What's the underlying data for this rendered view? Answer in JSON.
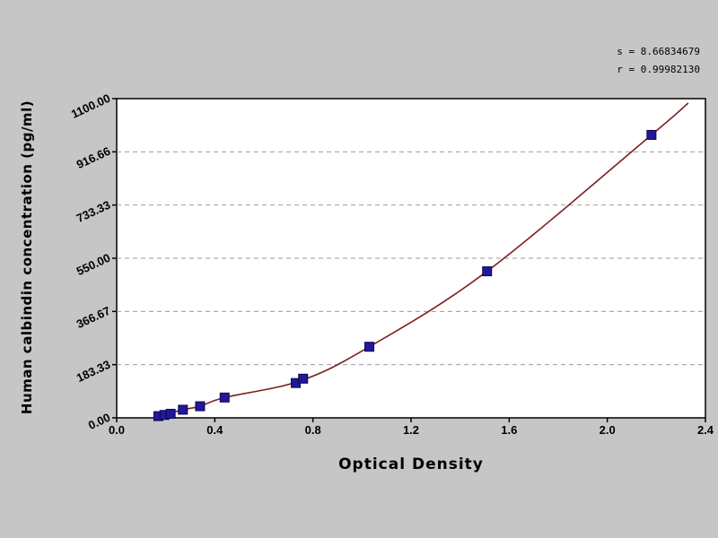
{
  "page": {
    "background": "#c6c6c6"
  },
  "stats": {
    "line1": "s = 8.66834679",
    "line2": "r = 0.99982130"
  },
  "chart_data": {
    "type": "scatter",
    "title": "",
    "xlabel": "Optical Density",
    "ylabel": "Human calbindin  concentration (pg/ml)",
    "xlim": [
      0.0,
      2.4
    ],
    "ylim": [
      0,
      1100
    ],
    "grid": {
      "on": true,
      "color": "#9c9c9c",
      "dash": "5 4"
    },
    "x_ticks": {
      "values": [
        0.0,
        0.4,
        0.8,
        1.2,
        1.6,
        2.0,
        2.4
      ],
      "labels": [
        "0.0",
        "0.4",
        "0.8",
        "1.2",
        "1.6",
        "2.0",
        "2.4"
      ]
    },
    "y_ticks": {
      "values": [
        0,
        183.33,
        366.67,
        550.0,
        733.33,
        916.66,
        1100.0
      ],
      "labels": [
        "0.00",
        "183.33",
        "366.67",
        "550.00",
        "733.33",
        "916.66",
        "1100.00"
      ]
    },
    "marker": {
      "shape": "square",
      "color": "#221897",
      "edge_color": "#0d0655",
      "size": 10
    },
    "series": [
      {
        "name": "standard-points",
        "points": [
          [
            0.17,
            6
          ],
          [
            0.195,
            10
          ],
          [
            0.22,
            14
          ],
          [
            0.27,
            28
          ],
          [
            0.34,
            40
          ],
          [
            0.44,
            70
          ],
          [
            0.73,
            120
          ],
          [
            0.76,
            135
          ],
          [
            1.03,
            245
          ],
          [
            1.51,
            505
          ],
          [
            2.18,
            975
          ]
        ]
      }
    ],
    "curve": {
      "name": "fitted-standard-curve",
      "color": "#7d1f1f",
      "points": [
        [
          0.17,
          5
        ],
        [
          0.27,
          28
        ],
        [
          0.34,
          40
        ],
        [
          0.44,
          70
        ],
        [
          0.75,
          128
        ],
        [
          1.03,
          245
        ],
        [
          1.51,
          505
        ],
        [
          2.18,
          975
        ],
        [
          2.33,
          1085
        ]
      ]
    },
    "legend": {
      "visible": false
    }
  }
}
